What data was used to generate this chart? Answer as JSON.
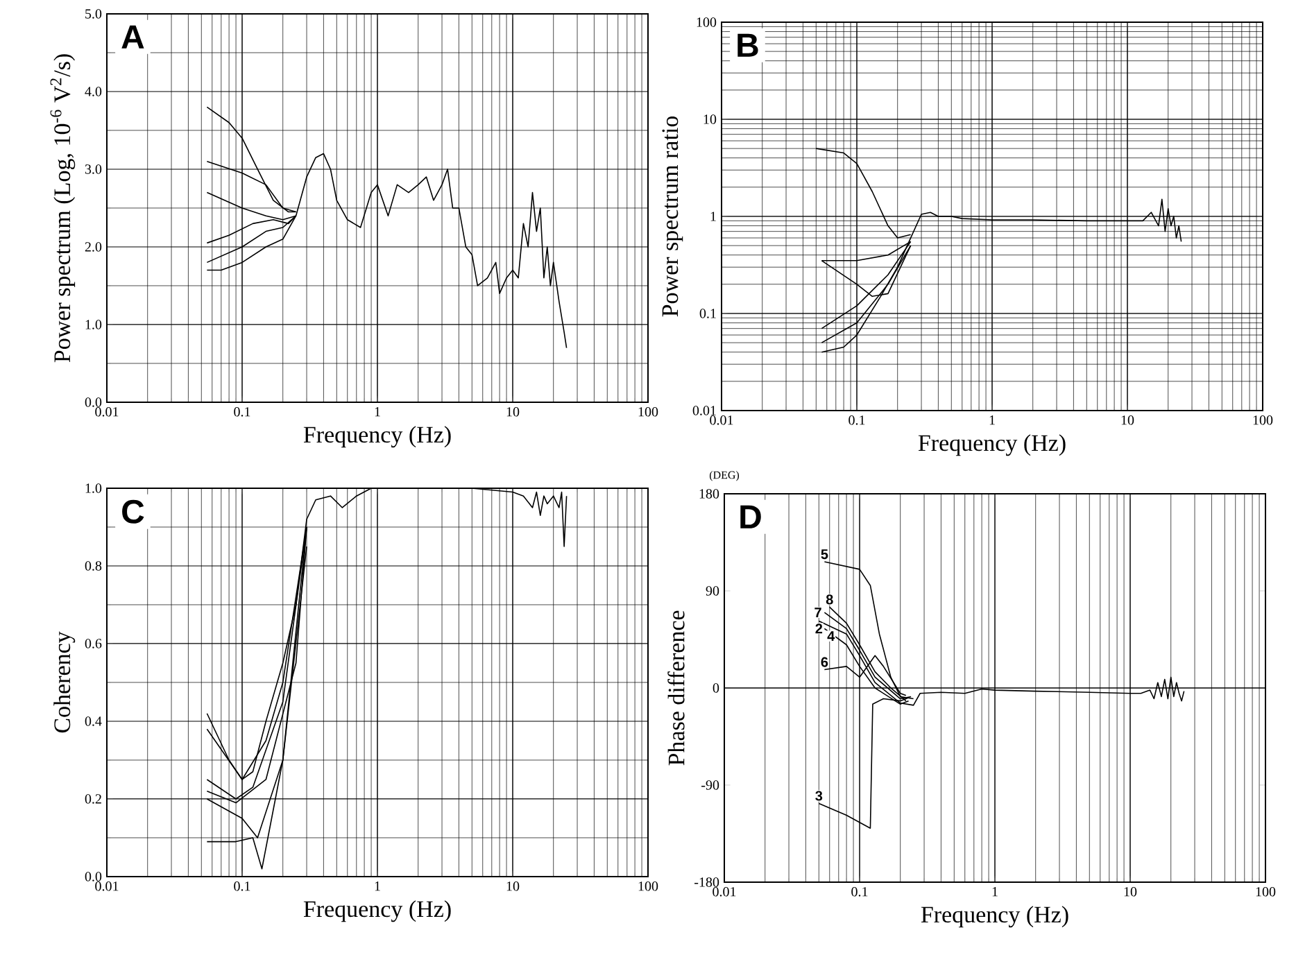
{
  "chart_data": [
    {
      "type": "line",
      "annotations": [
        "A"
      ],
      "xlabel": "Frequency (Hz)",
      "ylabel": "Power spectrum (Log, 10$^{-6}$ V$^{2}$/s)",
      "log": "x",
      "grid": true,
      "xlim": [
        0.01,
        100
      ],
      "xticks": [
        0.01,
        0.1,
        1,
        10,
        100
      ],
      "ylim": [
        0,
        5
      ],
      "yticks": [
        {
          "value": 0,
          "label": "0.0"
        },
        {
          "value": 1,
          "label": "1.0"
        },
        {
          "value": 2,
          "label": "2.0"
        },
        {
          "value": 3,
          "label": "3.0"
        },
        {
          "value": 4,
          "label": "4.0"
        },
        {
          "value": 5,
          "label": "5.0"
        }
      ],
      "series": [
        {
          "color": "#000000",
          "x": [
            0.055,
            0.07,
            0.1,
            0.15,
            0.2,
            0.25,
            0.3,
            0.35,
            0.4,
            0.45,
            0.5,
            0.6,
            0.75,
            0.9,
            1.0,
            1.2,
            1.4,
            1.7,
            2.0,
            2.3,
            2.6,
            3.0,
            3.3,
            3.6,
            4.0,
            4.5,
            5.0,
            5.5,
            6.5,
            7.5,
            8,
            9,
            10,
            11,
            12,
            13,
            14,
            15,
            16,
            17,
            18,
            19,
            20,
            22,
            24,
            25
          ],
          "values": [
            1.7,
            1.7,
            1.8,
            2.0,
            2.1,
            2.4,
            2.9,
            3.15,
            3.2,
            3.0,
            2.6,
            2.35,
            2.25,
            2.7,
            2.8,
            2.4,
            2.8,
            2.7,
            2.8,
            2.9,
            2.6,
            2.8,
            3.0,
            2.5,
            2.5,
            2.0,
            1.9,
            1.5,
            1.6,
            1.8,
            1.4,
            1.6,
            1.7,
            1.6,
            2.3,
            2.0,
            2.7,
            2.2,
            2.5,
            1.6,
            2.0,
            1.5,
            1.8,
            1.3,
            0.9,
            0.7
          ]
        },
        {
          "color": "#000000",
          "x": [
            0.055,
            0.08,
            0.1,
            0.13,
            0.17,
            0.22,
            0.25
          ],
          "values": [
            3.8,
            3.6,
            3.4,
            3.0,
            2.6,
            2.45,
            2.45
          ]
        },
        {
          "color": "#000000",
          "x": [
            0.055,
            0.1,
            0.15,
            0.2,
            0.25
          ],
          "values": [
            3.1,
            2.95,
            2.8,
            2.5,
            2.45
          ]
        },
        {
          "color": "#000000",
          "x": [
            0.055,
            0.1,
            0.15,
            0.2,
            0.25
          ],
          "values": [
            2.7,
            2.5,
            2.4,
            2.35,
            2.4
          ]
        },
        {
          "color": "#000000",
          "x": [
            0.055,
            0.08,
            0.12,
            0.17,
            0.22,
            0.25
          ],
          "values": [
            2.05,
            2.15,
            2.3,
            2.35,
            2.3,
            2.4
          ]
        },
        {
          "color": "#000000",
          "x": [
            0.055,
            0.1,
            0.15,
            0.2,
            0.25
          ],
          "values": [
            1.8,
            2.0,
            2.2,
            2.25,
            2.4
          ]
        }
      ]
    },
    {
      "type": "line",
      "annotations": [
        "B"
      ],
      "xlabel": "Frequency (Hz)",
      "ylabel": "Power spectrum ratio",
      "log": "xy",
      "grid": true,
      "xlim": [
        0.01,
        100
      ],
      "xticks": [
        0.01,
        0.1,
        1,
        10,
        100
      ],
      "ylim": [
        0.01,
        100
      ],
      "yticks": [
        0.01,
        0.1,
        1,
        10,
        100
      ],
      "series": [
        {
          "color": "#000000",
          "x": [
            0.055,
            0.08,
            0.1,
            0.15,
            0.2,
            0.25,
            0.3,
            0.35,
            0.4,
            0.5,
            0.6,
            1,
            2,
            5,
            10,
            13,
            15,
            17,
            18,
            19,
            20,
            21,
            22,
            23,
            24,
            25
          ],
          "values": [
            0.04,
            0.045,
            0.06,
            0.15,
            0.3,
            0.6,
            1.05,
            1.1,
            1.0,
            1.0,
            0.95,
            0.92,
            0.92,
            0.9,
            0.9,
            0.9,
            1.1,
            0.8,
            1.5,
            0.7,
            1.2,
            0.8,
            1.0,
            0.6,
            0.8,
            0.55
          ]
        },
        {
          "color": "#000000",
          "x": [
            0.05,
            0.08,
            0.1,
            0.13,
            0.17,
            0.2,
            0.25
          ],
          "values": [
            5,
            4.5,
            3.5,
            1.8,
            0.8,
            0.6,
            0.65
          ]
        },
        {
          "color": "#000000",
          "x": [
            0.055,
            0.1,
            0.17,
            0.25
          ],
          "values": [
            0.35,
            0.35,
            0.4,
            0.55
          ]
        },
        {
          "color": "#000000",
          "x": [
            0.055,
            0.1,
            0.13,
            0.17,
            0.25
          ],
          "values": [
            0.35,
            0.2,
            0.15,
            0.16,
            0.5
          ]
        },
        {
          "color": "#000000",
          "x": [
            0.055,
            0.1,
            0.17,
            0.25
          ],
          "values": [
            0.07,
            0.12,
            0.25,
            0.55
          ]
        },
        {
          "color": "#000000",
          "x": [
            0.055,
            0.1,
            0.17,
            0.25
          ],
          "values": [
            0.05,
            0.08,
            0.2,
            0.5
          ]
        }
      ]
    },
    {
      "type": "line",
      "annotations": [
        "C"
      ],
      "xlabel": "Frequency (Hz)",
      "ylabel": "Coherency",
      "log": "x",
      "grid": true,
      "xlim": [
        0.01,
        100
      ],
      "xticks": [
        0.01,
        0.1,
        1,
        10,
        100
      ],
      "ylim": [
        0,
        1
      ],
      "yticks": [
        {
          "value": 0,
          "label": "0.0"
        },
        {
          "value": 0.2,
          "label": "0.2"
        },
        {
          "value": 0.4,
          "label": "0.4"
        },
        {
          "value": 0.6,
          "label": "0.6"
        },
        {
          "value": 0.8,
          "label": "0.8"
        },
        {
          "value": 1,
          "label": "1.0"
        }
      ],
      "series": [
        {
          "color": "#000000",
          "x": [
            0.055,
            0.08,
            0.1,
            0.12,
            0.15,
            0.2,
            0.25,
            0.3,
            0.35,
            0.45,
            0.55,
            0.7,
            0.9,
            2,
            5,
            10,
            12,
            14,
            15,
            16,
            17,
            18,
            20,
            22,
            23,
            24,
            25
          ],
          "values": [
            0.42,
            0.3,
            0.25,
            0.27,
            0.4,
            0.55,
            0.7,
            0.92,
            0.97,
            0.98,
            0.95,
            0.98,
            1.0,
            1.0,
            1.0,
            0.99,
            0.98,
            0.95,
            0.99,
            0.93,
            0.98,
            0.96,
            0.98,
            0.95,
            0.99,
            0.85,
            0.98
          ]
        },
        {
          "color": "#000000",
          "x": [
            0.055,
            0.1,
            0.15,
            0.2,
            0.3
          ],
          "values": [
            0.38,
            0.25,
            0.35,
            0.5,
            0.9
          ]
        },
        {
          "color": "#000000",
          "x": [
            0.055,
            0.09,
            0.12,
            0.2,
            0.3
          ],
          "values": [
            0.25,
            0.2,
            0.23,
            0.45,
            0.9
          ]
        },
        {
          "color": "#000000",
          "x": [
            0.055,
            0.09,
            0.15,
            0.25,
            0.3
          ],
          "values": [
            0.22,
            0.19,
            0.25,
            0.55,
            0.9
          ]
        },
        {
          "color": "#000000",
          "x": [
            0.055,
            0.1,
            0.13,
            0.2,
            0.3
          ],
          "values": [
            0.2,
            0.15,
            0.1,
            0.3,
            0.9
          ]
        },
        {
          "color": "#000000",
          "x": [
            0.055,
            0.09,
            0.12,
            0.14,
            0.2,
            0.3
          ],
          "values": [
            0.09,
            0.09,
            0.1,
            0.02,
            0.3,
            0.85
          ]
        }
      ]
    },
    {
      "type": "line",
      "annotations": [
        "D",
        "(DEG)"
      ],
      "xlabel": "Frequency (Hz)",
      "ylabel": "Phase difference",
      "log": "x",
      "grid": "x",
      "xlim": [
        0.01,
        100
      ],
      "xticks": [
        0.01,
        0.1,
        1,
        10,
        100
      ],
      "ylim": [
        -180,
        180
      ],
      "yticks": [
        -180,
        -90,
        0,
        90,
        180
      ],
      "ref_lines": [
        {
          "axis": "y",
          "value": 0,
          "color": "#000000"
        }
      ],
      "series": [
        {
          "name": "5",
          "color": "#000000",
          "x": [
            0.055,
            0.1,
            0.12,
            0.14,
            0.17,
            0.2,
            0.25
          ],
          "values": [
            117,
            110,
            95,
            50,
            10,
            -8,
            -10
          ]
        },
        {
          "name": "8",
          "color": "#000000",
          "x": [
            0.06,
            0.08,
            0.1,
            0.13,
            0.17,
            0.22
          ],
          "values": [
            75,
            60,
            40,
            15,
            0,
            -12
          ]
        },
        {
          "name": "7",
          "color": "#000000",
          "x": [
            0.055,
            0.08,
            0.1,
            0.13,
            0.2,
            0.24
          ],
          "values": [
            70,
            55,
            35,
            10,
            -10,
            -8
          ]
        },
        {
          "name": "2",
          "color": "#000000",
          "x": [
            0.05,
            0.08,
            0.1,
            0.13,
            0.2,
            0.25,
            0.28,
            0.4,
            0.6,
            0.8,
            1,
            2,
            5,
            10,
            12,
            14,
            15,
            16,
            17,
            18,
            19,
            20,
            21,
            22,
            23,
            24,
            25
          ],
          "values": [
            62,
            50,
            30,
            5,
            -14,
            -16,
            -5,
            -4,
            -5,
            -1,
            -2,
            -3,
            -4,
            -5,
            -5,
            -2,
            -10,
            5,
            -8,
            8,
            -10,
            10,
            -8,
            5,
            -5,
            -12,
            -3
          ]
        },
        {
          "name": "4",
          "color": "#000000",
          "x": [
            0.055,
            0.08,
            0.1,
            0.13,
            0.2,
            0.23
          ],
          "values": [
            55,
            40,
            20,
            0,
            -15,
            -12
          ]
        },
        {
          "name": "6",
          "color": "#000000",
          "x": [
            0.055,
            0.08,
            0.1,
            0.13,
            0.15,
            0.2,
            0.22
          ],
          "values": [
            17,
            20,
            10,
            30,
            20,
            -5,
            -7
          ]
        },
        {
          "name": "3",
          "color": "#000000",
          "x": [
            0.05,
            0.08,
            0.12,
            0.125,
            0.15,
            0.2,
            0.23
          ],
          "values": [
            -107,
            -118,
            -130,
            -15,
            -10,
            -12,
            -9
          ]
        }
      ]
    }
  ]
}
